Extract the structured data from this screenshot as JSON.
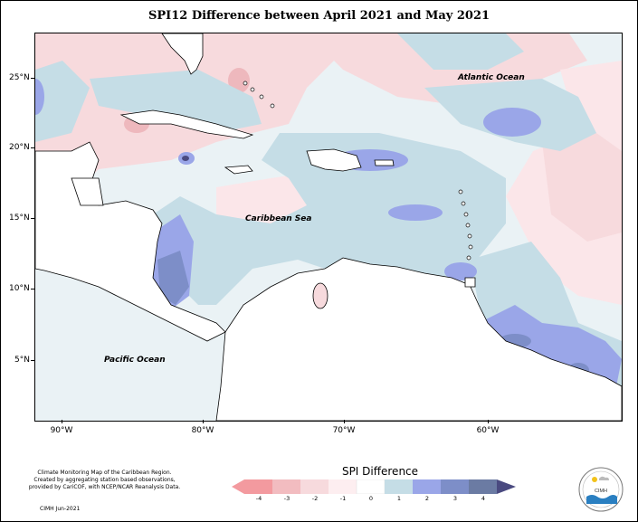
{
  "title": "SPI12 Difference between April 2021 and May 2021",
  "lat_labels": [
    "25°N",
    "20°N",
    "15°N",
    "10°N",
    "5°N"
  ],
  "lon_labels": [
    "90°W",
    "80°W",
    "70°W",
    "60°W"
  ],
  "ocean_labels": {
    "atlantic": "Atlantic Ocean",
    "caribbean": "Caribbean Sea",
    "pacific": "Pacific Ocean"
  },
  "legend": {
    "title": "SPI Difference",
    "ticks": [
      "-4",
      "-3",
      "-2",
      "-1",
      "0",
      "1",
      "2",
      "3",
      "4"
    ],
    "colors": [
      "#f39a9f",
      "#f2bcc0",
      "#f7dadd",
      "#fdeef0",
      "#c5dde6",
      "#9aa6e8",
      "#7d8ec8",
      "#6b7ba3",
      "#4a4a80"
    ]
  },
  "credit": {
    "line1": "Climate Monitoring Map of the Caribbean Region.",
    "line2": "Created by aggregating station based observations,",
    "line3": "provided by CariCOF, with NCEP/NCAR Reanalysis Data.",
    "date": "CIMH Jun-2021"
  },
  "logo_text": "CIMH",
  "colors": {
    "ocean_base": "#f3f8fa",
    "light_blue": "#c5dde6",
    "blue": "#9aa6e8",
    "dark_blue": "#7d8ec8",
    "pink": "#f7dadd",
    "dark_pink": "#eeb8bd",
    "land": "#ffffff"
  }
}
